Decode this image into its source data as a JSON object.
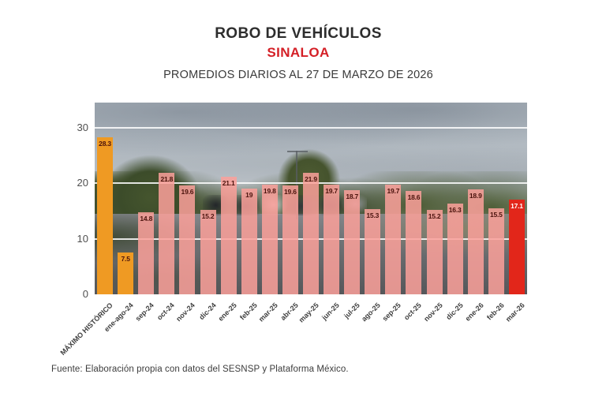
{
  "header": {
    "title": "ROBO DE VEHÍCULOS",
    "region": "SINALOA",
    "subtitle": "PROMEDIOS DIARIOS AL 27 DE MARZO DE 2026"
  },
  "footer": {
    "source": "Fuente: Elaboración propia con datos del SESNSP y Plataforma México."
  },
  "colors": {
    "title": "#2d2d2d",
    "region_red": "#d41f26",
    "bar_pink": "rgba(250,160,154,0.86)",
    "bar_orange": "#ef9a23",
    "bar_red": "#e2261a",
    "value_label": "#4a120c",
    "value_label_on_red": "#ffffff",
    "gridline": "rgba(255,255,255,0.85)",
    "axis_text": "#4f4f4f",
    "x_label_text": "#3e3e3e"
  },
  "chart_data": {
    "type": "bar",
    "title": "ROBO DE VEHÍCULOS",
    "subtitle": "SINALOA — PROMEDIOS DIARIOS AL 27 DE MARZO DE 2026",
    "categories": [
      "MÁXIMO HISTÓRICO",
      "ene-ago-24",
      "sep-24",
      "oct-24",
      "nov-24",
      "dic-24",
      "ene-25",
      "feb-25",
      "mar-25",
      "abr-25",
      "may-25",
      "jun-25",
      "jul-25",
      "ago-25",
      "sep-25",
      "oct-25",
      "nov-25",
      "dic-25",
      "ene-26",
      "feb-26",
      "mar-26"
    ],
    "values": [
      28.3,
      7.5,
      14.8,
      21.8,
      19.6,
      15.2,
      21.1,
      19,
      19.8,
      19.6,
      21.9,
      19.7,
      18.7,
      15.3,
      19.7,
      18.6,
      15.2,
      16.3,
      18.9,
      15.5,
      17.1
    ],
    "bar_colors": [
      "orange",
      "orange",
      "pink",
      "pink",
      "pink",
      "pink",
      "pink",
      "pink",
      "pink",
      "pink",
      "pink",
      "pink",
      "pink",
      "pink",
      "pink",
      "pink",
      "pink",
      "pink",
      "pink",
      "pink",
      "red"
    ],
    "xlabel": "",
    "ylabel": "",
    "y_ticks": [
      0,
      10,
      20,
      30
    ],
    "ylim": [
      0,
      34.5
    ],
    "grid": true,
    "legend_position": "none",
    "background": "photo of a road with trees and cloudy sky"
  }
}
